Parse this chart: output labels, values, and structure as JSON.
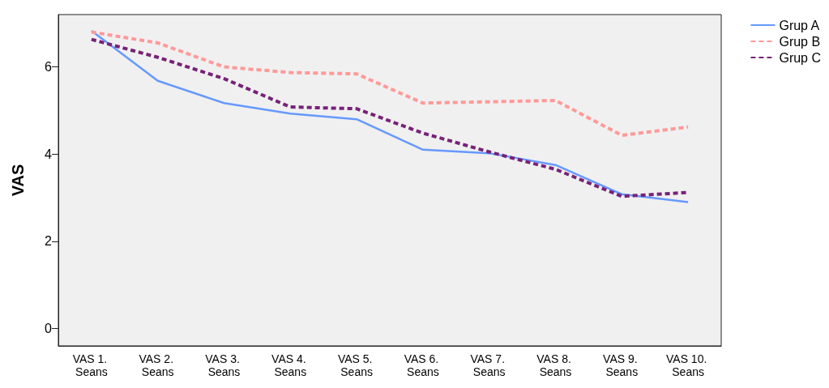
{
  "chart_data": {
    "type": "line",
    "ylabel": "VAS",
    "categories": [
      "VAS 1. Seans",
      "VAS 2. Seans",
      "VAS 3. Seans",
      "VAS 4. Seans",
      "VAS 5. Seans",
      "VAS 6. Seans",
      "VAS 7. Seans",
      "VAS 8. Seans",
      "VAS 9. Seans",
      "VAS 10. Seans"
    ],
    "series": [
      {
        "name": "Grup A",
        "color": "#6699ff",
        "line_style": "solid",
        "values": [
          6.83,
          5.68,
          5.17,
          4.93,
          4.8,
          4.1,
          4.02,
          3.75,
          3.08,
          2.9
        ]
      },
      {
        "name": "Grup B",
        "color": "#ff9999",
        "line_style": "dashed",
        "values": [
          6.8,
          6.55,
          6.0,
          5.87,
          5.84,
          5.17,
          5.2,
          5.23,
          4.43,
          4.62
        ]
      },
      {
        "name": "Grup C",
        "color": "#772277",
        "line_style": "dashed",
        "values": [
          6.63,
          6.22,
          5.73,
          5.08,
          5.04,
          4.48,
          4.05,
          3.65,
          3.03,
          3.12
        ]
      }
    ],
    "ylim": [
      -0.4,
      7.2
    ],
    "yticks": [
      0,
      2,
      4,
      6
    ],
    "grid": false,
    "legend": "top right",
    "marker": "none"
  }
}
